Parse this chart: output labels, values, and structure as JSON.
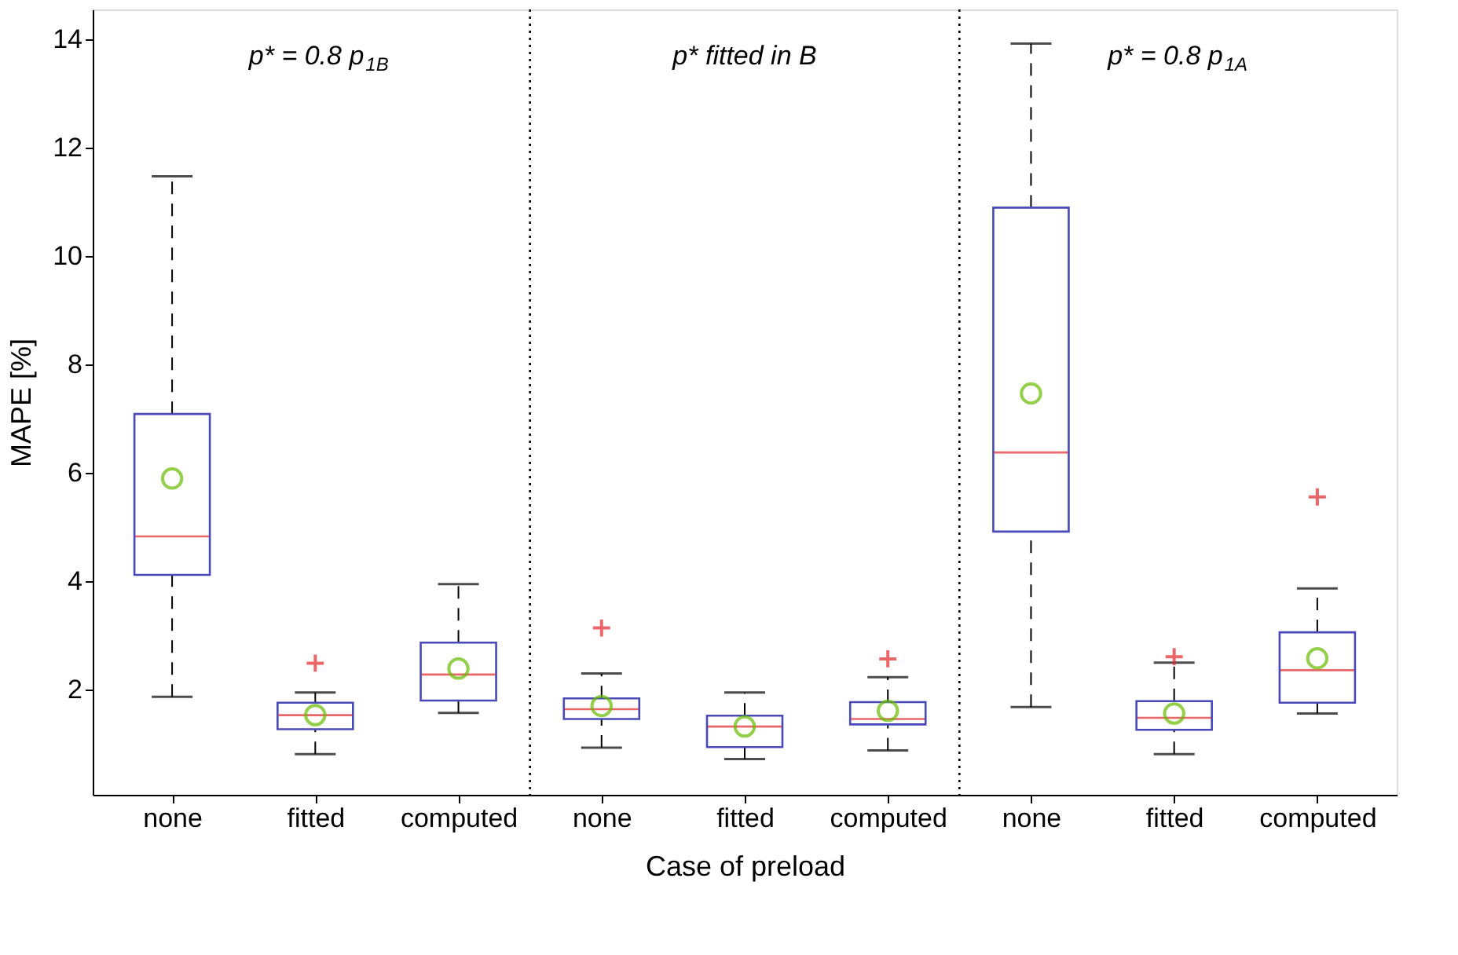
{
  "chart_data": {
    "type": "box",
    "xlabel": "Case of preload",
    "ylabel": "MAPE [%]",
    "categories": [
      "none",
      "fitted",
      "computed",
      "none",
      "fitted",
      "computed",
      "none",
      "fitted",
      "computed"
    ],
    "ylim": [
      0.05,
      14.55
    ],
    "yticks": [
      2,
      4,
      6,
      8,
      10,
      12,
      14
    ],
    "color": "#4848b8",
    "boxes": [
      {
        "low": 1.86,
        "q1": 4.11,
        "median": 4.82,
        "q3": 7.08,
        "high": 11.47,
        "mean": 5.89
      },
      {
        "low": 0.8,
        "q1": 1.26,
        "median": 1.52,
        "q3": 1.75,
        "high": 1.94,
        "mean": 1.52,
        "outliers": [
          2.48
        ]
      },
      {
        "low": 1.56,
        "q1": 1.79,
        "median": 2.27,
        "q3": 2.86,
        "high": 3.94,
        "mean": 2.38
      },
      {
        "low": 0.92,
        "q1": 1.45,
        "median": 1.63,
        "q3": 1.83,
        "high": 2.29,
        "mean": 1.69,
        "outliers": [
          3.13
        ]
      },
      {
        "low": 0.71,
        "q1": 0.93,
        "median": 1.31,
        "q3": 1.51,
        "high": 1.94,
        "mean": 1.31
      },
      {
        "low": 0.87,
        "q1": 1.35,
        "median": 1.45,
        "q3": 1.76,
        "high": 2.22,
        "mean": 1.6,
        "outliers": [
          2.56
        ]
      },
      {
        "low": 1.67,
        "q1": 4.91,
        "median": 6.37,
        "q3": 10.89,
        "high": 13.92,
        "mean": 7.46
      },
      {
        "low": 0.8,
        "q1": 1.25,
        "median": 1.47,
        "q3": 1.78,
        "high": 2.49,
        "mean": 1.55,
        "outliers": [
          2.6
        ]
      },
      {
        "low": 1.55,
        "q1": 1.75,
        "median": 2.35,
        "q3": 3.05,
        "high": 3.86,
        "mean": 2.57,
        "outliers": [
          5.55
        ]
      }
    ],
    "annotations": [
      "p* = 0.8 p$_{1B}$",
      "p* fitted in B",
      "p* = 0.8 p$_{1A}$"
    ],
    "grid": false
  }
}
